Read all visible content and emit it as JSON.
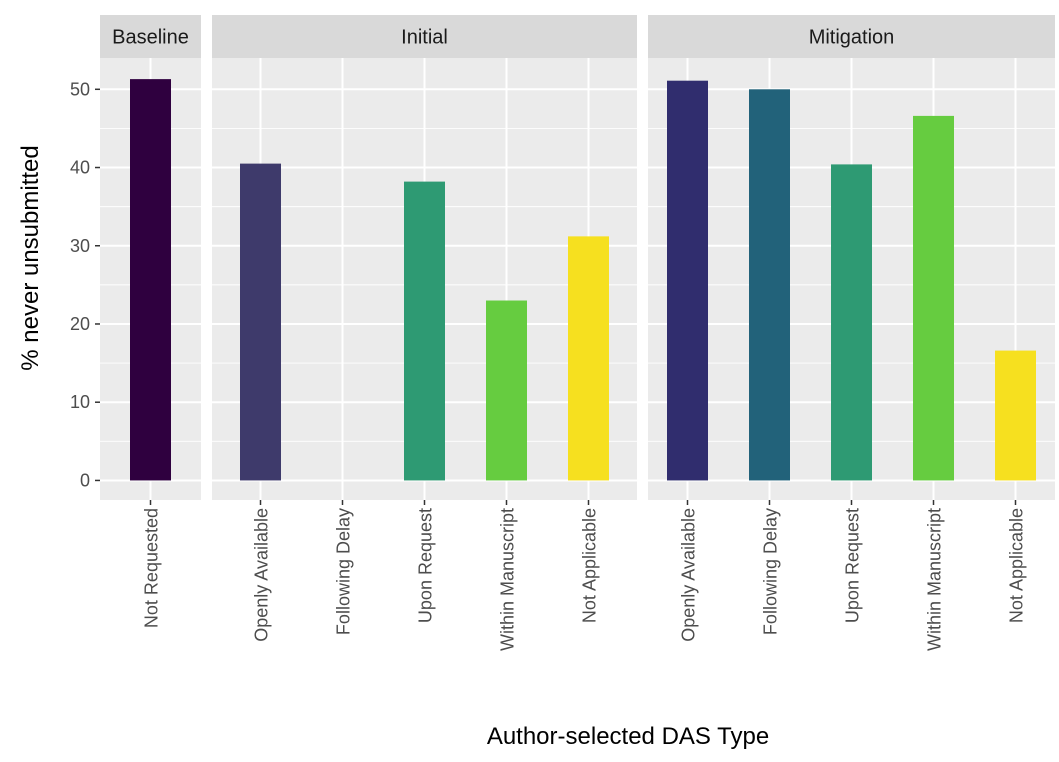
{
  "chart_data": {
    "type": "bar",
    "xlabel": "Author-selected DAS Type",
    "ylabel": "% never unsubmitted",
    "ylim": [
      -2.5,
      54
    ],
    "yticks": [
      0,
      10,
      20,
      30,
      40,
      50
    ],
    "grid": true,
    "legend": "none",
    "panels": [
      {
        "name": "Baseline",
        "categories": [
          "Not Requested"
        ],
        "values": [
          51.3
        ],
        "colors": [
          "#2f003f"
        ]
      },
      {
        "name": "Initial",
        "categories": [
          "Openly Available",
          "Following Delay",
          "Upon Request",
          "Within Manuscript",
          "Not Applicable"
        ],
        "values": [
          40.5,
          0,
          38.2,
          23.0,
          31.2
        ],
        "colors": [
          "#3e3a6b",
          "#26627a",
          "#2e9a73",
          "#66cc40",
          "#f6e01f"
        ]
      },
      {
        "name": "Mitigation",
        "categories": [
          "Openly Available",
          "Following Delay",
          "Upon Request",
          "Within Manuscript",
          "Not Applicable"
        ],
        "values": [
          51.1,
          50.0,
          40.4,
          46.6,
          16.6
        ],
        "colors": [
          "#302d6e",
          "#22627a",
          "#2e9a73",
          "#66cc40",
          "#f6e01f"
        ]
      }
    ]
  }
}
